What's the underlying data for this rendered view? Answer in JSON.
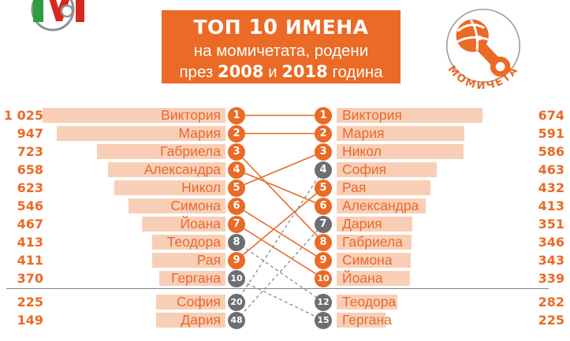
{
  "header": {
    "title_pre": "ТОП ",
    "title_num": "10",
    "title_post": " ИМЕНА",
    "subtitle_line1": "на момичетата, родени",
    "sub2_pre": "през ",
    "sub2_year1": "2008",
    "sub2_mid": " и ",
    "sub2_year2": "2018",
    "sub2_post": " година",
    "badge_label": "МОМИЧЕТА",
    "logo": "nsi-bulgaria-logo"
  },
  "colors": {
    "accent_orange": "#EA6A26",
    "bar_fill": "#F8CFB6",
    "gray_circle": "#6D6E71",
    "dashed_line": "#909295",
    "divider_gray": "#7F8184",
    "badge_outline": "#9B9DA0"
  },
  "chart_data": {
    "type": "bar",
    "subtype": "paired-ranking-slopegraph",
    "title": "ТОП 10 ИМЕНА на момичетата, родени през 2008 и 2018 година",
    "legend_position": "none",
    "grid": false,
    "series": [
      {
        "name": "2008",
        "side": "left",
        "entries": [
          {
            "rank": 1,
            "name": "Виктория",
            "value": 1025,
            "label": "1 025",
            "top10_both": true
          },
          {
            "rank": 2,
            "name": "Мария",
            "value": 947,
            "label": "947",
            "top10_both": true
          },
          {
            "rank": 3,
            "name": "Габриела",
            "value": 723,
            "label": "723",
            "top10_both": true
          },
          {
            "rank": 4,
            "name": "Александра",
            "value": 658,
            "label": "658",
            "top10_both": true
          },
          {
            "rank": 5,
            "name": "Никол",
            "value": 623,
            "label": "623",
            "top10_both": true
          },
          {
            "rank": 6,
            "name": "Симона",
            "value": 546,
            "label": "546",
            "top10_both": true
          },
          {
            "rank": 7,
            "name": "Йоана",
            "value": 467,
            "label": "467",
            "top10_both": true
          },
          {
            "rank": 8,
            "name": "Теодора",
            "value": 413,
            "label": "413",
            "top10_both": false
          },
          {
            "rank": 9,
            "name": "Рая",
            "value": 411,
            "label": "411",
            "top10_both": true
          },
          {
            "rank": 10,
            "name": "Гергана",
            "value": 370,
            "label": "370",
            "top10_both": false
          },
          {
            "rank": 20,
            "name": "София",
            "value": 225,
            "label": "225",
            "top10_both": false,
            "below_divider": true
          },
          {
            "rank": 48,
            "name": "Дария",
            "value": 149,
            "label": "149",
            "top10_both": false,
            "below_divider": true
          }
        ]
      },
      {
        "name": "2018",
        "side": "right",
        "entries": [
          {
            "rank": 1,
            "name": "Виктория",
            "value": 674,
            "label": "674",
            "top10_both": true
          },
          {
            "rank": 2,
            "name": "Мария",
            "value": 591,
            "label": "591",
            "top10_both": true
          },
          {
            "rank": 3,
            "name": "Никол",
            "value": 586,
            "label": "586",
            "top10_both": true
          },
          {
            "rank": 4,
            "name": "София",
            "value": 463,
            "label": "463",
            "top10_both": false
          },
          {
            "rank": 5,
            "name": "Рая",
            "value": 432,
            "label": "432",
            "top10_both": true
          },
          {
            "rank": 6,
            "name": "Александра",
            "value": 413,
            "label": "413",
            "top10_both": true
          },
          {
            "rank": 7,
            "name": "Дария",
            "value": 351,
            "label": "351",
            "top10_both": false
          },
          {
            "rank": 8,
            "name": "Габриела",
            "value": 346,
            "label": "346",
            "top10_both": true
          },
          {
            "rank": 9,
            "name": "Симона",
            "value": 343,
            "label": "343",
            "top10_both": true
          },
          {
            "rank": 10,
            "name": "Йоана",
            "value": 339,
            "label": "339",
            "top10_both": true
          },
          {
            "rank": 12,
            "name": "Теодора",
            "value": 282,
            "label": "282",
            "top10_both": false,
            "below_divider": true
          },
          {
            "rank": 15,
            "name": "Гергана",
            "value": 225,
            "label": "225",
            "top10_both": false,
            "below_divider": true
          }
        ]
      }
    ],
    "links": [
      {
        "name": "Виктория",
        "from": 0,
        "to": 0,
        "style": "solid"
      },
      {
        "name": "Мария",
        "from": 1,
        "to": 1,
        "style": "solid"
      },
      {
        "name": "Габриела",
        "from": 2,
        "to": 7,
        "style": "solid"
      },
      {
        "name": "Александра",
        "from": 3,
        "to": 5,
        "style": "solid"
      },
      {
        "name": "Никол",
        "from": 4,
        "to": 2,
        "style": "solid"
      },
      {
        "name": "Симона",
        "from": 5,
        "to": 8,
        "style": "solid"
      },
      {
        "name": "Йоана",
        "from": 6,
        "to": 9,
        "style": "solid"
      },
      {
        "name": "Теодора",
        "from": 7,
        "to": 10,
        "style": "dashed"
      },
      {
        "name": "Рая",
        "from": 8,
        "to": 4,
        "style": "solid"
      },
      {
        "name": "Гергана",
        "from": 9,
        "to": 11,
        "style": "dashed"
      },
      {
        "name": "София",
        "from": 10,
        "to": 3,
        "style": "dashed"
      },
      {
        "name": "Дария",
        "from": 11,
        "to": 6,
        "style": "dashed"
      }
    ]
  }
}
